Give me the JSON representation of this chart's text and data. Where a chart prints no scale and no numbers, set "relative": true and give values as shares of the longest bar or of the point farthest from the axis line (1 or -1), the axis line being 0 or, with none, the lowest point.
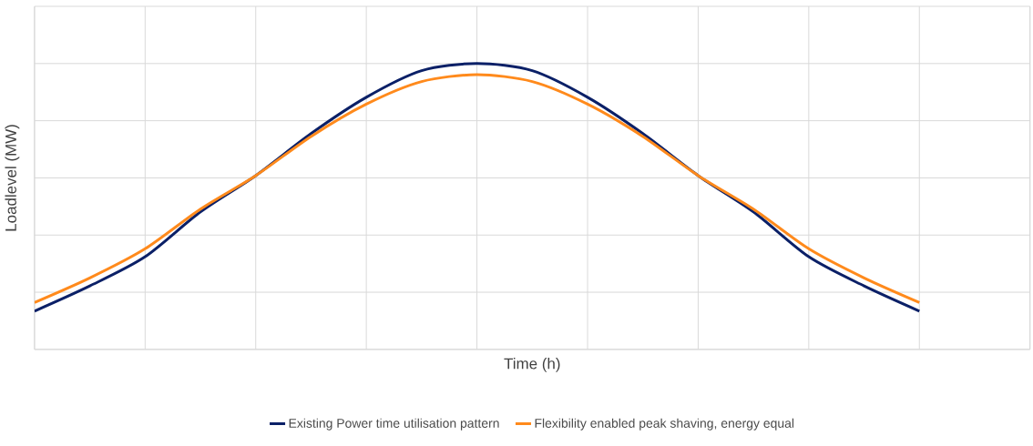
{
  "chart_data": {
    "type": "line",
    "relative": true,
    "xlabel": "Time (h)",
    "ylabel": "Loadlevel (MW)",
    "categories": [
      null,
      null,
      null,
      null,
      null,
      null,
      null,
      null,
      null,
      null,
      null,
      null,
      null,
      null,
      null,
      null,
      null,
      null,
      null
    ],
    "series": [
      {
        "name": "Existing Power time utilisation pattern",
        "color": "#0b2067",
        "values": [
          0.134,
          0.222,
          0.324,
          0.481,
          0.608,
          0.755,
          0.882,
          0.975,
          1.0,
          0.975,
          0.882,
          0.755,
          0.608,
          0.481,
          0.324,
          0.222,
          0.134,
          null,
          null
        ]
      },
      {
        "name": "Flexibility enabled peak shaving, energy equal",
        "color": "#ff8a1c",
        "values": [
          0.164,
          0.25,
          0.352,
          0.491,
          0.608,
          0.745,
          0.858,
          0.937,
          0.961,
          0.937,
          0.858,
          0.745,
          0.608,
          0.491,
          0.352,
          0.25,
          0.164,
          null,
          null
        ]
      }
    ],
    "grid": true,
    "legend": "bottom",
    "marker": "none",
    "line_style": "solid"
  }
}
